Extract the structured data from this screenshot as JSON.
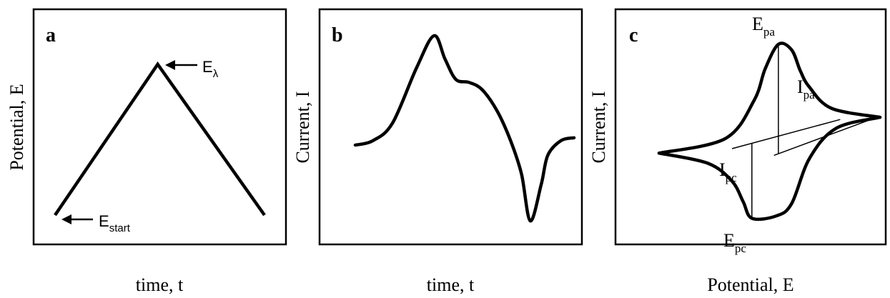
{
  "chart_data": [
    {
      "type": "line",
      "panel_label": "a",
      "xlabel": "time, t",
      "ylabel": "Potential, E",
      "series": [
        {
          "x": [
            0,
            0.49,
            1
          ],
          "y": [
            0,
            1,
            0
          ]
        }
      ],
      "annotations": [
        {
          "base": "E",
          "sub": "start",
          "at": "start"
        },
        {
          "base": "E",
          "sub": "λ",
          "at": "peak"
        }
      ]
    },
    {
      "type": "line",
      "panel_label": "b",
      "xlabel": "time, t",
      "ylabel": "Current, I",
      "series": [
        {
          "x": [
            0,
            0.08,
            0.17,
            0.28,
            0.36,
            0.41,
            0.46,
            0.52,
            0.58,
            0.65,
            0.71,
            0.76,
            0.8,
            0.85,
            0.88,
            0.94,
            1
          ],
          "y": [
            0.25,
            0.28,
            0.4,
            0.78,
            1.0,
            0.84,
            0.7,
            0.68,
            0.63,
            0.48,
            0.28,
            0.05,
            -0.27,
            -0.02,
            0.18,
            0.28,
            0.3
          ]
        }
      ]
    },
    {
      "type": "line",
      "panel_label": "c",
      "xlabel": "Potential, E",
      "ylabel": "Current, I",
      "series": [
        {
          "x": [
            0,
            0.3,
            0.43,
            0.48,
            0.54,
            0.6,
            0.64,
            0.68,
            0.78,
            1
          ],
          "y": [
            0.03,
            0.16,
            0.5,
            0.78,
            1.0,
            0.95,
            0.76,
            0.62,
            0.43,
            0.35
          ]
        },
        {
          "x": [
            1,
            0.8,
            0.68,
            0.6,
            0.53,
            0.42,
            0.38,
            0.33,
            0.22,
            0
          ],
          "y": [
            0.35,
            0.25,
            -0.02,
            -0.42,
            -0.53,
            -0.55,
            -0.4,
            -0.22,
            -0.06,
            0.03
          ]
        }
      ],
      "baselines": [
        {
          "from": [
            0.33,
            0.07
          ],
          "to": [
            0.82,
            0.33
          ]
        },
        {
          "from": [
            0.52,
            0.01
          ],
          "to": [
            1.0,
            0.36
          ]
        }
      ],
      "annotations": [
        {
          "base": "E",
          "sub": "pa"
        },
        {
          "base": "I",
          "sub": "pa"
        },
        {
          "base": "I",
          "sub": "pc"
        },
        {
          "base": "E",
          "sub": "pc"
        }
      ]
    }
  ]
}
